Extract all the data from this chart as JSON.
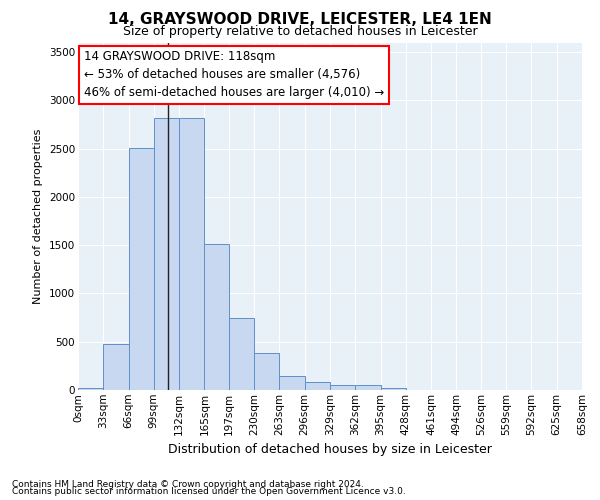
{
  "title_line1": "14, GRAYSWOOD DRIVE, LEICESTER, LE4 1EN",
  "title_line2": "Size of property relative to detached houses in Leicester",
  "xlabel": "Distribution of detached houses by size in Leicester",
  "ylabel": "Number of detached properties",
  "footnote1": "Contains HM Land Registry data © Crown copyright and database right 2024.",
  "footnote2": "Contains public sector information licensed under the Open Government Licence v3.0.",
  "annotation_line1": "14 GRAYSWOOD DRIVE: 118sqm",
  "annotation_line2": "← 53% of detached houses are smaller (4,576)",
  "annotation_line3": "46% of semi-detached houses are larger (4,010) →",
  "bar_edges": [
    0,
    33,
    66,
    99,
    132,
    165,
    197,
    230,
    263,
    296,
    329,
    362,
    395,
    428,
    461,
    494,
    526,
    559,
    592,
    625,
    658
  ],
  "bar_heights": [
    20,
    480,
    2510,
    2820,
    2820,
    1510,
    750,
    380,
    140,
    80,
    55,
    55,
    20,
    0,
    0,
    0,
    0,
    0,
    0,
    0
  ],
  "bar_color": "#c8d8f0",
  "bar_edge_color": "#6090c8",
  "vline_x": 118,
  "ylim": [
    0,
    3600
  ],
  "yticks": [
    0,
    500,
    1000,
    1500,
    2000,
    2500,
    3000,
    3500
  ],
  "bg_color": "#e8f0f8",
  "title1_fontsize": 11,
  "title2_fontsize": 9,
  "ylabel_fontsize": 8,
  "xlabel_fontsize": 9,
  "tick_fontsize": 7.5,
  "ann_fontsize": 8.5,
  "footnote_fontsize": 6.5
}
